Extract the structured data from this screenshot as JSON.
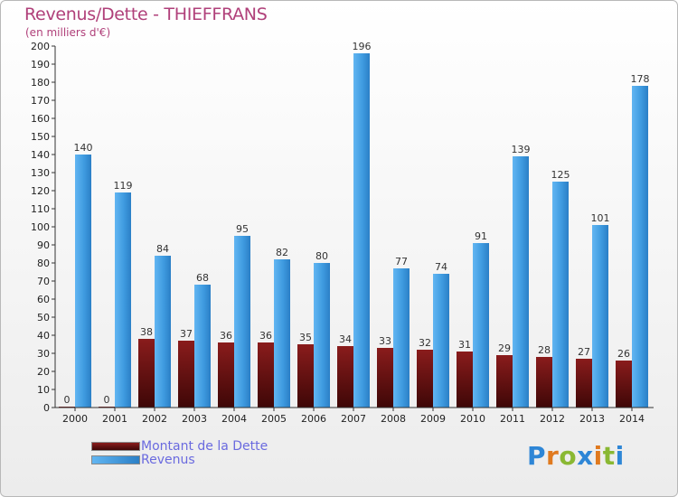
{
  "chart_data": {
    "type": "bar",
    "title": "Revenus/Dette - THIEFFRANS",
    "subtitle": "(en milliers d'€)",
    "categories": [
      "2000",
      "2001",
      "2002",
      "2003",
      "2004",
      "2005",
      "2006",
      "2007",
      "2008",
      "2009",
      "2010",
      "2011",
      "2012",
      "2013",
      "2014"
    ],
    "series": [
      {
        "name": "Montant de la Dette",
        "color": "#7a1414",
        "values": [
          0,
          0,
          38,
          37,
          36,
          36,
          35,
          34,
          33,
          32,
          31,
          29,
          28,
          27,
          26
        ]
      },
      {
        "name": "Revenus",
        "color": "#3f9be0",
        "values": [
          140,
          119,
          84,
          68,
          95,
          82,
          80,
          196,
          77,
          74,
          91,
          139,
          125,
          101,
          178
        ]
      }
    ],
    "ylim": [
      0,
      200
    ],
    "ytick_step": 10,
    "grid": false,
    "legend_position": "bottom-left"
  },
  "logo": {
    "letters": [
      {
        "ch": "P",
        "color": "#2e86d6"
      },
      {
        "ch": "r",
        "color": "#e07a1f"
      },
      {
        "ch": "o",
        "color": "#8ab833"
      },
      {
        "ch": "x",
        "color": "#2e86d6"
      },
      {
        "ch": "i",
        "color": "#e07a1f"
      },
      {
        "ch": "t",
        "color": "#8ab833"
      },
      {
        "ch": "i",
        "color": "#2e86d6"
      }
    ]
  }
}
